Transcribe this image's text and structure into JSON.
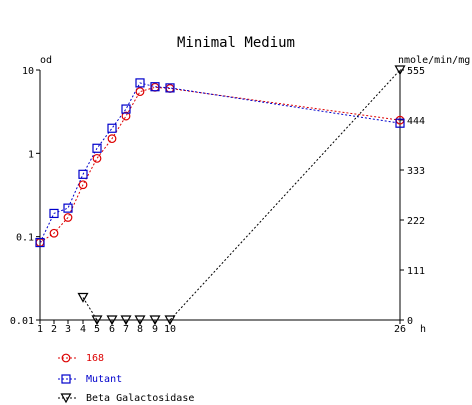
{
  "chart_data": {
    "type": "line",
    "title": "Minimal Medium",
    "left_axis": {
      "label": "od",
      "scale": "log",
      "range": [
        0.01,
        10
      ],
      "ticks": [
        {
          "value": 10,
          "label": "10"
        },
        {
          "value": 1,
          "label": "1"
        },
        {
          "value": 0.1,
          "label": "0.1"
        },
        {
          "value": 0.01,
          "label": "0.01"
        }
      ]
    },
    "right_axis": {
      "label": "nmole/min/mg",
      "scale": "linear",
      "range": [
        0,
        555
      ],
      "ticks": [
        {
          "value": 555,
          "label": "555"
        },
        {
          "value": 444,
          "label": "444"
        },
        {
          "value": 333,
          "label": "333"
        },
        {
          "value": 222,
          "label": "222"
        },
        {
          "value": 111,
          "label": "111"
        },
        {
          "value": 0,
          "label": "0"
        }
      ]
    },
    "x_axis": {
      "unit": "h",
      "tick_labels": [
        "1",
        "2",
        "3",
        "4",
        "5",
        "6",
        "7",
        "8",
        "9",
        "10",
        "26"
      ],
      "tick_values": [
        1,
        2,
        3,
        4,
        5,
        6,
        7,
        8,
        9,
        10,
        26
      ]
    },
    "series": [
      {
        "name": "168",
        "axis": "left",
        "color": "#dd0000",
        "marker": "circle",
        "x": [
          1,
          2,
          3,
          4,
          5,
          6,
          7,
          8,
          9,
          10,
          26
        ],
        "y": [
          0.085,
          0.11,
          0.17,
          0.42,
          0.87,
          1.5,
          2.8,
          5.5,
          6.2,
          6.0,
          2.5
        ]
      },
      {
        "name": "Mutant",
        "axis": "left",
        "color": "#0000cc",
        "marker": "square",
        "x": [
          1,
          2,
          3,
          4,
          5,
          6,
          7,
          8,
          9,
          10,
          26
        ],
        "y": [
          0.085,
          0.19,
          0.22,
          0.56,
          1.15,
          2.0,
          3.4,
          7.0,
          6.3,
          6.1,
          2.3
        ]
      },
      {
        "name": "Beta Galactosidase",
        "axis": "right",
        "color": "#000000",
        "marker": "triangle-down",
        "x": [
          4,
          5,
          6,
          7,
          8,
          9,
          10,
          26
        ],
        "y": [
          50,
          0,
          0,
          0,
          0,
          0,
          0,
          555
        ]
      }
    ],
    "grid": false,
    "legend_position": "bottom-left"
  }
}
